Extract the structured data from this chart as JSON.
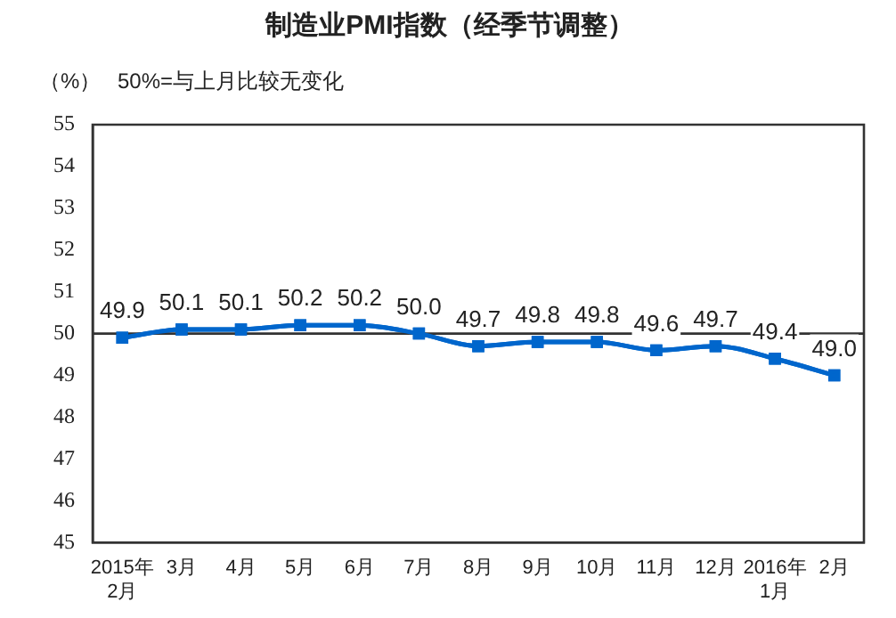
{
  "chart_data": {
    "type": "line",
    "title": "制造业PMI指数（经季节调整）",
    "ylabel": "（%）",
    "annotations": [
      "50%=与上月比较无变化"
    ],
    "categories": [
      "2015年\n2月",
      "3月",
      "4月",
      "5月",
      "6月",
      "7月",
      "8月",
      "9月",
      "10月",
      "11月",
      "12月",
      "2016年\n1月",
      "2月"
    ],
    "series": [
      {
        "color": "#0066cc",
        "values": [
          49.9,
          50.1,
          50.1,
          50.2,
          50.2,
          50.0,
          49.7,
          49.8,
          49.8,
          49.6,
          49.7,
          49.4,
          49.0
        ],
        "value_labels": [
          "49.9",
          "50.1",
          "50.1",
          "50.2",
          "50.2",
          "50.0",
          "49.7",
          "49.8",
          "49.8",
          "49.6",
          "49.7",
          "49.4",
          "49.0"
        ]
      }
    ],
    "ylim": [
      45,
      55
    ],
    "yticks": [
      45,
      46,
      47,
      48,
      49,
      50,
      51,
      52,
      53,
      54,
      55
    ],
    "ref_lines": [
      {
        "axis": "y",
        "value": 50,
        "color": "#333333"
      }
    ],
    "marker": "square",
    "line_style": "solid",
    "grid": false,
    "legend": false
  }
}
